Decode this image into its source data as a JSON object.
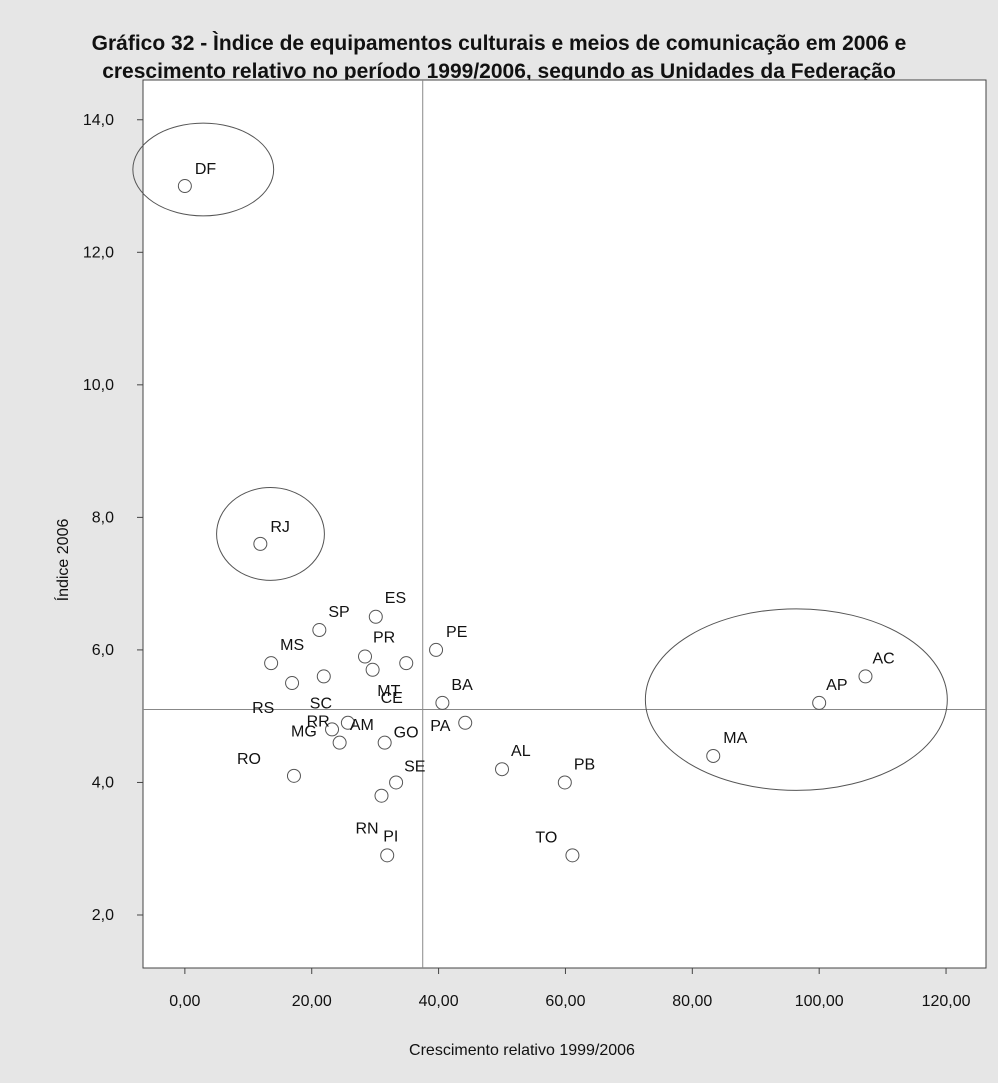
{
  "chart_data": {
    "type": "scatter",
    "title": "Gráfico 32 - Ìndice de equipamentos culturais e meios de comunicação em 2006 e crescimento relativo no período 1999/2006, segundo as Unidades da Federação",
    "title_lines": [
      "Gráfico 32 - Ìndice de equipamentos culturais e meios de comunicação em 2006 e",
      "crescimento relativo no período 1999/2006, segundo as Unidades da Federação"
    ],
    "xlabel": "Crescimento relativo 1999/2006",
    "ylabel": "Índice 2006",
    "xlim": [
      -6.6,
      126.3
    ],
    "ylim": [
      1.2,
      14.6
    ],
    "x_ticks": [
      "0,00",
      "20,00",
      "40,00",
      "60,00",
      "80,00",
      "100,00",
      "120,00"
    ],
    "x_tick_values": [
      0,
      20,
      40,
      60,
      80,
      100,
      120
    ],
    "y_ticks": [
      "14,0",
      "12,0",
      "10,0",
      "8,0",
      "6,0",
      "4,0",
      "2,0"
    ],
    "y_tick_values": [
      14,
      12,
      10,
      8,
      6,
      4,
      2
    ],
    "reference_lines": {
      "x": 37.5,
      "y": 5.1
    },
    "points": [
      {
        "label": "DF",
        "x": 0.0,
        "y": 13.0
      },
      {
        "label": "RJ",
        "x": 11.9,
        "y": 7.6
      },
      {
        "label": "SP",
        "x": 21.2,
        "y": 6.3
      },
      {
        "label": "ES",
        "x": 30.1,
        "y": 6.5
      },
      {
        "label": "PE",
        "x": 39.6,
        "y": 6.0
      },
      {
        "label": "MS",
        "x": 13.6,
        "y": 5.8
      },
      {
        "label": "PR",
        "x": 28.4,
        "y": 5.9
      },
      {
        "label": "RS",
        "x": 16.9,
        "y": 5.5
      },
      {
        "label": "SC",
        "x": 21.9,
        "y": 5.6
      },
      {
        "label": "CE",
        "x": 29.6,
        "y": 5.7
      },
      {
        "label": "MT",
        "x": 34.9,
        "y": 5.8
      },
      {
        "label": "BA",
        "x": 40.6,
        "y": 5.2
      },
      {
        "label": "MG",
        "x": 23.2,
        "y": 4.8
      },
      {
        "label": "AM",
        "x": 25.7,
        "y": 4.9
      },
      {
        "label": "GO",
        "x": 31.5,
        "y": 4.6
      },
      {
        "label": "PA",
        "x": 44.2,
        "y": 4.9
      },
      {
        "label": "RR",
        "x": 24.4,
        "y": 4.6
      },
      {
        "label": "RO",
        "x": 17.2,
        "y": 4.1
      },
      {
        "label": "SE",
        "x": 33.3,
        "y": 4.0
      },
      {
        "label": "RN",
        "x": 31.0,
        "y": 3.8
      },
      {
        "label": "AL",
        "x": 50.0,
        "y": 4.2
      },
      {
        "label": "PB",
        "x": 59.9,
        "y": 4.0
      },
      {
        "label": "PI",
        "x": 31.9,
        "y": 2.9
      },
      {
        "label": "TO",
        "x": 61.1,
        "y": 2.9
      },
      {
        "label": "AP",
        "x": 100.0,
        "y": 5.2
      },
      {
        "label": "AC",
        "x": 107.3,
        "y": 5.6
      },
      {
        "label": "MA",
        "x": 83.3,
        "y": 4.4
      }
    ],
    "groups": [
      {
        "cx": 2.9,
        "cy": 13.25,
        "rx": 11.1,
        "ry": 0.7
      },
      {
        "cx": 13.5,
        "cy": 7.75,
        "rx": 8.5,
        "ry": 0.7
      },
      {
        "cx": 96.4,
        "cy": 5.25,
        "rx": 23.8,
        "ry": 1.37
      }
    ],
    "grid": false,
    "legend": "none"
  }
}
